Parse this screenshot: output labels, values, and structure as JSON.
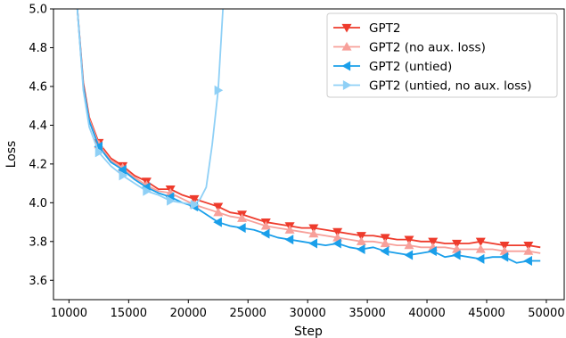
{
  "chart_data": {
    "type": "line",
    "xlabel": "Step",
    "ylabel": "Loss",
    "xlim": [
      8700,
      51500
    ],
    "ylim": [
      3.5,
      5.0
    ],
    "xticks": [
      10000,
      15000,
      20000,
      25000,
      30000,
      35000,
      40000,
      45000,
      50000
    ],
    "yticks": [
      3.6,
      3.8,
      4.0,
      4.2,
      4.4,
      4.6,
      4.8,
      5.0
    ],
    "legend_position": "top-right",
    "series": [
      {
        "name": "GPT2",
        "color": "#ee3b2c",
        "marker": "triangle-down",
        "x": [
          10700,
          11200,
          11700,
          12500,
          13500,
          14500,
          15500,
          16500,
          17500,
          18500,
          19500,
          20500,
          21500,
          22500,
          23500,
          24500,
          25500,
          26500,
          27500,
          28500,
          29500,
          30500,
          31500,
          32500,
          33500,
          34500,
          35500,
          36500,
          37500,
          38500,
          39500,
          40500,
          41500,
          42500,
          43500,
          44500,
          45500,
          46500,
          47500,
          48500,
          49500
        ],
        "y": [
          5.0,
          4.62,
          4.44,
          4.31,
          4.23,
          4.19,
          4.14,
          4.11,
          4.07,
          4.07,
          4.04,
          4.02,
          4.0,
          3.98,
          3.95,
          3.94,
          3.92,
          3.9,
          3.89,
          3.88,
          3.87,
          3.87,
          3.86,
          3.85,
          3.84,
          3.83,
          3.83,
          3.82,
          3.81,
          3.81,
          3.8,
          3.8,
          3.79,
          3.79,
          3.79,
          3.8,
          3.79,
          3.78,
          3.78,
          3.78,
          3.77
        ],
        "marker_x": [
          12500,
          14500,
          16500,
          18500,
          20500,
          22500,
          24500,
          26500,
          28500,
          30500,
          32500,
          34500,
          36500,
          38500,
          40500,
          42500,
          44500,
          46500,
          48500
        ],
        "marker_y": [
          4.31,
          4.19,
          4.11,
          4.07,
          4.02,
          3.98,
          3.94,
          3.9,
          3.88,
          3.87,
          3.85,
          3.83,
          3.82,
          3.81,
          3.8,
          3.79,
          3.8,
          3.78,
          3.78
        ]
      },
      {
        "name": "GPT2 (no aux. loss)",
        "color": "#f7a09a",
        "marker": "triangle-up",
        "x": [
          10700,
          11200,
          11700,
          12500,
          13500,
          14500,
          15500,
          16500,
          17500,
          18500,
          19500,
          20500,
          21500,
          22500,
          23500,
          24500,
          25500,
          26500,
          27500,
          28500,
          29500,
          30500,
          31500,
          32500,
          33500,
          34500,
          35500,
          36500,
          37500,
          38500,
          39500,
          40500,
          41500,
          42500,
          43500,
          44500,
          45500,
          46500,
          47500,
          48500,
          49500
        ],
        "y": [
          5.0,
          4.6,
          4.43,
          4.3,
          4.22,
          4.18,
          4.13,
          4.09,
          4.06,
          4.05,
          4.02,
          3.99,
          3.97,
          3.95,
          3.93,
          3.92,
          3.9,
          3.88,
          3.87,
          3.86,
          3.85,
          3.84,
          3.83,
          3.82,
          3.81,
          3.8,
          3.8,
          3.79,
          3.78,
          3.78,
          3.77,
          3.77,
          3.77,
          3.76,
          3.76,
          3.76,
          3.76,
          3.75,
          3.75,
          3.75,
          3.74
        ],
        "marker_x": [
          12500,
          14500,
          16500,
          18500,
          20500,
          22500,
          24500,
          26500,
          28500,
          30500,
          32500,
          34500,
          36500,
          38500,
          40500,
          42500,
          44500,
          46500,
          48500
        ],
        "marker_y": [
          4.3,
          4.18,
          4.09,
          4.05,
          3.99,
          3.95,
          3.92,
          3.88,
          3.86,
          3.84,
          3.82,
          3.8,
          3.79,
          3.78,
          3.77,
          3.76,
          3.76,
          3.75,
          3.75
        ]
      },
      {
        "name": "GPT2 (untied)",
        "color": "#1a9fea",
        "marker": "triangle-left",
        "x": [
          10700,
          11200,
          11700,
          12500,
          13500,
          14500,
          15500,
          16500,
          17500,
          18500,
          19500,
          20500,
          21500,
          22500,
          23500,
          24500,
          25500,
          26500,
          27500,
          28500,
          29500,
          30500,
          31500,
          32500,
          33500,
          34500,
          35500,
          36500,
          37500,
          38500,
          39500,
          40500,
          41500,
          42500,
          43500,
          44500,
          45500,
          46500,
          47500,
          48500,
          49500
        ],
        "y": [
          5.0,
          4.6,
          4.42,
          4.29,
          4.21,
          4.17,
          4.12,
          4.08,
          4.05,
          4.03,
          4.0,
          3.98,
          3.94,
          3.9,
          3.88,
          3.87,
          3.86,
          3.84,
          3.82,
          3.81,
          3.8,
          3.79,
          3.78,
          3.79,
          3.77,
          3.76,
          3.77,
          3.75,
          3.74,
          3.73,
          3.74,
          3.75,
          3.72,
          3.73,
          3.72,
          3.71,
          3.72,
          3.72,
          3.69,
          3.7,
          3.7
        ],
        "marker_x": [
          12500,
          14500,
          16500,
          18500,
          20500,
          22500,
          24500,
          26500,
          28500,
          30500,
          32500,
          34500,
          36500,
          38500,
          40500,
          42500,
          44500,
          46500,
          48500
        ],
        "marker_y": [
          4.29,
          4.17,
          4.08,
          4.03,
          3.98,
          3.9,
          3.87,
          3.84,
          3.81,
          3.79,
          3.79,
          3.76,
          3.75,
          3.73,
          3.75,
          3.73,
          3.71,
          3.72,
          3.7
        ]
      },
      {
        "name": "GPT2 (untied, no aux. loss)",
        "color": "#8fd0f6",
        "marker": "triangle-right",
        "x": [
          10700,
          11200,
          11700,
          12500,
          13500,
          14500,
          15500,
          16500,
          17500,
          18500,
          19500,
          20500,
          21000,
          21500,
          22000,
          22500,
          22900
        ],
        "y": [
          5.0,
          4.58,
          4.39,
          4.26,
          4.19,
          4.14,
          4.1,
          4.06,
          4.04,
          4.01,
          4.0,
          3.99,
          4.02,
          4.08,
          4.3,
          4.58,
          5.0
        ],
        "marker_x": [
          12500,
          14500,
          16500,
          18500,
          20500,
          22500
        ],
        "marker_y": [
          4.26,
          4.14,
          4.06,
          4.01,
          3.99,
          4.58
        ]
      }
    ]
  }
}
